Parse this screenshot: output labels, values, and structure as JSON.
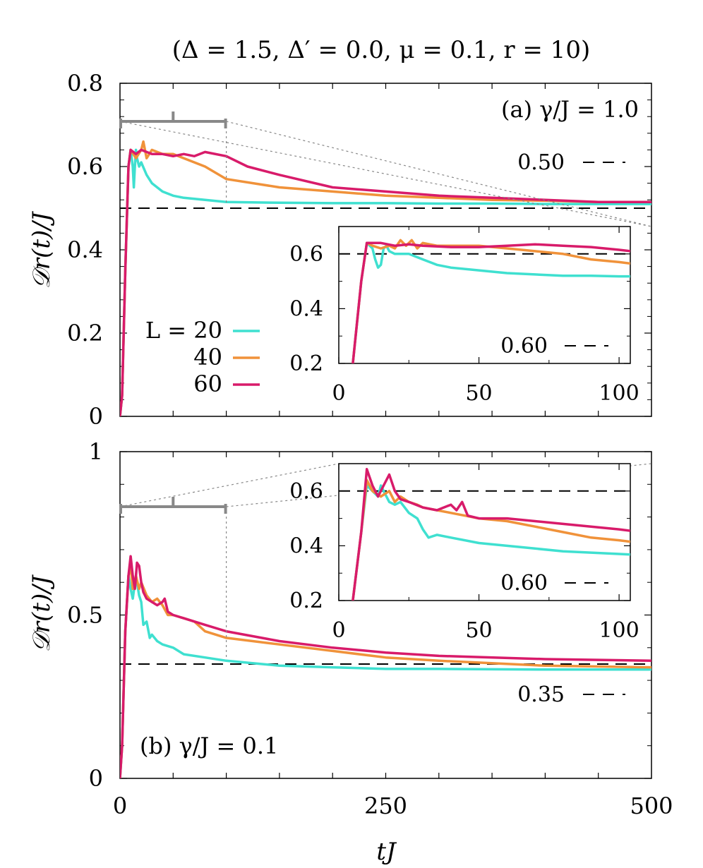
{
  "title": "(Δ = 1.5, Δ′ = 0.0, μ = 0.1, r = 10)",
  "xlabel": "tJ",
  "ylabel": "𝒟r(t)/J",
  "x_ticks": [
    "0",
    "250",
    "500"
  ],
  "legend": {
    "header": "L = 20",
    "entries": [
      "20",
      "40",
      "60"
    ],
    "labels": [
      "L = 20",
      "40",
      "60"
    ]
  },
  "colors": {
    "L20": "#3fe0d0",
    "L40": "#f0923a",
    "L60": "#d81b6a",
    "ref": "#000000",
    "zoom": "#888888"
  },
  "chart_data": [
    {
      "type": "line",
      "panel": "a",
      "panel_label": "(a) γ/J = 1.0",
      "y_ticks": [
        "0",
        "0.2",
        "0.4",
        "0.6",
        "0.8"
      ],
      "xlim": [
        0,
        500
      ],
      "ylim": [
        0,
        0.8
      ],
      "ref_value": 0.5,
      "ref_label": "0.50",
      "series": [
        {
          "name": "L = 20",
          "x": [
            0,
            2,
            5,
            8,
            10,
            12,
            13,
            14,
            15,
            16,
            18,
            20,
            25,
            30,
            40,
            50,
            60,
            80,
            100,
            150,
            200,
            250,
            300,
            350,
            400,
            450,
            500
          ],
          "y": [
            0,
            0.05,
            0.35,
            0.6,
            0.64,
            0.6,
            0.55,
            0.6,
            0.64,
            0.62,
            0.6,
            0.61,
            0.58,
            0.56,
            0.54,
            0.53,
            0.525,
            0.52,
            0.515,
            0.513,
            0.512,
            0.512,
            0.511,
            0.511,
            0.51,
            0.51,
            0.51
          ]
        },
        {
          "name": "40",
          "x": [
            0,
            2,
            5,
            8,
            10,
            15,
            20,
            22,
            25,
            30,
            40,
            50,
            60,
            80,
            100,
            150,
            200,
            250,
            300,
            350,
            400,
            450,
            500
          ],
          "y": [
            0,
            0.05,
            0.35,
            0.6,
            0.64,
            0.62,
            0.64,
            0.66,
            0.62,
            0.64,
            0.63,
            0.63,
            0.62,
            0.6,
            0.57,
            0.55,
            0.54,
            0.53,
            0.525,
            0.52,
            0.518,
            0.515,
            0.515
          ]
        },
        {
          "name": "60",
          "x": [
            0,
            2,
            5,
            8,
            10,
            15,
            20,
            30,
            40,
            50,
            60,
            70,
            80,
            100,
            120,
            150,
            200,
            250,
            300,
            350,
            400,
            450,
            500
          ],
          "y": [
            0,
            0.05,
            0.35,
            0.6,
            0.64,
            0.63,
            0.64,
            0.63,
            0.63,
            0.625,
            0.63,
            0.625,
            0.635,
            0.625,
            0.6,
            0.58,
            0.55,
            0.54,
            0.53,
            0.525,
            0.52,
            0.515,
            0.515
          ]
        }
      ],
      "inset": {
        "x_ticks": [
          "0",
          "50",
          "100"
        ],
        "y_ticks": [
          "0.2",
          "0.4",
          "0.6"
        ],
        "xlim": [
          0,
          104
        ],
        "ylim": [
          0.2,
          0.7
        ],
        "ref_value": 0.6,
        "ref_label": "0.60",
        "series": [
          {
            "name": "L = 20",
            "x": [
              5,
              8,
              10,
              12,
              13,
              14,
              15,
              16,
              17,
              18,
              20,
              25,
              30,
              35,
              40,
              50,
              60,
              70,
              80,
              90,
              100,
              104
            ],
            "y": [
              0.2,
              0.5,
              0.64,
              0.62,
              0.58,
              0.55,
              0.56,
              0.62,
              0.63,
              0.61,
              0.6,
              0.6,
              0.58,
              0.56,
              0.55,
              0.54,
              0.53,
              0.525,
              0.52,
              0.52,
              0.518,
              0.518
            ]
          },
          {
            "name": "40",
            "x": [
              5,
              8,
              10,
              12,
              15,
              18,
              20,
              22,
              24,
              26,
              28,
              30,
              35,
              40,
              50,
              60,
              70,
              80,
              90,
              100,
              104
            ],
            "y": [
              0.2,
              0.5,
              0.64,
              0.63,
              0.62,
              0.63,
              0.62,
              0.65,
              0.63,
              0.65,
              0.62,
              0.64,
              0.63,
              0.63,
              0.63,
              0.62,
              0.61,
              0.6,
              0.58,
              0.57,
              0.565
            ]
          },
          {
            "name": "60",
            "x": [
              5,
              8,
              10,
              12,
              15,
              20,
              25,
              30,
              40,
              50,
              60,
              70,
              80,
              90,
              100,
              104
            ],
            "y": [
              0.2,
              0.5,
              0.64,
              0.64,
              0.64,
              0.63,
              0.635,
              0.63,
              0.625,
              0.625,
              0.63,
              0.635,
              0.63,
              0.625,
              0.615,
              0.61
            ]
          }
        ]
      }
    },
    {
      "type": "line",
      "panel": "b",
      "panel_label": "(b) γ/J = 0.1",
      "y_ticks": [
        "0",
        "0.5",
        "1"
      ],
      "xlim": [
        0,
        500
      ],
      "ylim": [
        0,
        1
      ],
      "ref_value": 0.35,
      "ref_label": "0.35",
      "series": [
        {
          "name": "L = 20",
          "x": [
            0,
            2,
            5,
            8,
            10,
            12,
            15,
            18,
            20,
            22,
            25,
            28,
            30,
            35,
            40,
            50,
            60,
            80,
            100,
            150,
            200,
            250,
            300,
            400,
            500
          ],
          "y": [
            0,
            0.1,
            0.45,
            0.62,
            0.58,
            0.55,
            0.62,
            0.56,
            0.54,
            0.47,
            0.48,
            0.43,
            0.44,
            0.42,
            0.41,
            0.4,
            0.38,
            0.37,
            0.36,
            0.345,
            0.34,
            0.335,
            0.335,
            0.333,
            0.333
          ]
        },
        {
          "name": "40",
          "x": [
            0,
            2,
            5,
            8,
            10,
            12,
            15,
            18,
            20,
            25,
            30,
            35,
            40,
            45,
            50,
            60,
            70,
            80,
            100,
            150,
            200,
            250,
            300,
            400,
            500
          ],
          "y": [
            0,
            0.1,
            0.45,
            0.62,
            0.65,
            0.58,
            0.62,
            0.58,
            0.6,
            0.56,
            0.54,
            0.55,
            0.53,
            0.5,
            0.5,
            0.49,
            0.48,
            0.45,
            0.43,
            0.41,
            0.39,
            0.37,
            0.36,
            0.345,
            0.34
          ]
        },
        {
          "name": "60",
          "x": [
            0,
            2,
            5,
            8,
            10,
            12,
            14,
            16,
            18,
            20,
            22,
            25,
            30,
            35,
            40,
            42,
            45,
            50,
            60,
            80,
            100,
            150,
            200,
            250,
            300,
            400,
            500
          ],
          "y": [
            0,
            0.1,
            0.45,
            0.62,
            0.68,
            0.62,
            0.58,
            0.66,
            0.65,
            0.6,
            0.57,
            0.55,
            0.54,
            0.53,
            0.54,
            0.55,
            0.51,
            0.5,
            0.49,
            0.47,
            0.45,
            0.42,
            0.4,
            0.385,
            0.375,
            0.365,
            0.36
          ]
        }
      ],
      "inset": {
        "x_ticks": [
          "0",
          "50",
          "100"
        ],
        "y_ticks": [
          "0.2",
          "0.4",
          "0.6"
        ],
        "xlim": [
          0,
          104
        ],
        "ylim": [
          0.2,
          0.7
        ],
        "ref_value": 0.6,
        "ref_label": "0.60",
        "series": [
          {
            "name": "L = 20",
            "x": [
              5,
              8,
              10,
              12,
              14,
              15,
              16,
              18,
              20,
              22,
              25,
              28,
              30,
              32,
              35,
              40,
              50,
              60,
              70,
              80,
              90,
              100,
              104
            ],
            "y": [
              0.2,
              0.45,
              0.62,
              0.6,
              0.58,
              0.62,
              0.6,
              0.56,
              0.55,
              0.56,
              0.52,
              0.5,
              0.46,
              0.43,
              0.44,
              0.43,
              0.41,
              0.4,
              0.39,
              0.38,
              0.375,
              0.37,
              0.368
            ]
          },
          {
            "name": "40",
            "x": [
              5,
              8,
              10,
              12,
              15,
              18,
              20,
              22,
              25,
              28,
              30,
              35,
              40,
              45,
              50,
              60,
              70,
              80,
              90,
              100,
              104
            ],
            "y": [
              0.2,
              0.45,
              0.64,
              0.6,
              0.58,
              0.6,
              0.56,
              0.58,
              0.56,
              0.55,
              0.54,
              0.53,
              0.52,
              0.51,
              0.5,
              0.49,
              0.47,
              0.45,
              0.43,
              0.42,
              0.415
            ]
          },
          {
            "name": "60",
            "x": [
              5,
              8,
              10,
              12,
              14,
              16,
              18,
              20,
              22,
              25,
              30,
              35,
              40,
              42,
              44,
              46,
              50,
              60,
              70,
              80,
              90,
              100,
              104
            ],
            "y": [
              0.2,
              0.45,
              0.68,
              0.62,
              0.58,
              0.62,
              0.66,
              0.6,
              0.57,
              0.56,
              0.54,
              0.53,
              0.55,
              0.53,
              0.56,
              0.51,
              0.5,
              0.5,
              0.49,
              0.48,
              0.47,
              0.46,
              0.455
            ]
          }
        ]
      }
    }
  ]
}
